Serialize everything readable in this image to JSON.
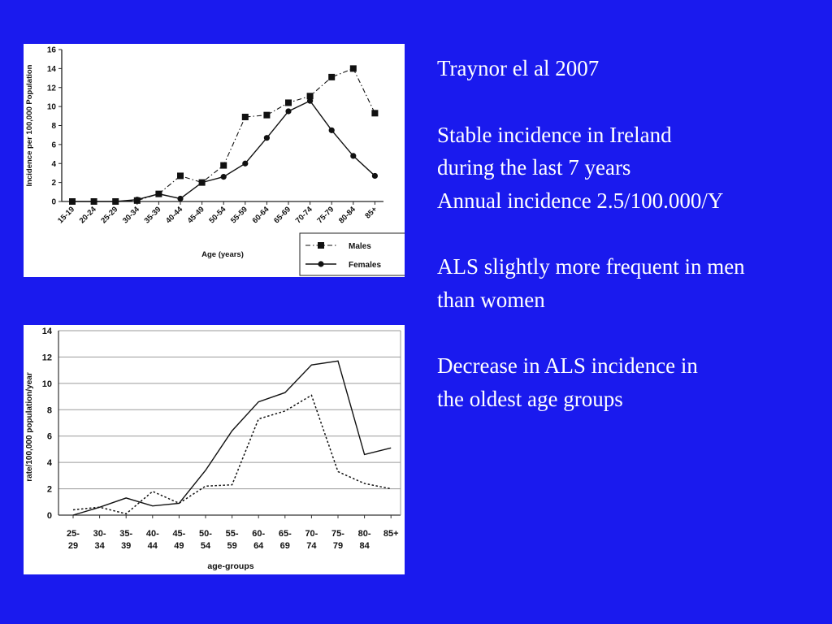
{
  "slide": {
    "background_color": "#1a1aee",
    "text_color": "#ffffff"
  },
  "text": {
    "citation": "Traynor el al 2007",
    "para1": [
      "Stable incidence in Ireland",
      "during the last 7 years",
      "Annual incidence 2.5/100.000/Y"
    ],
    "para2": [
      "ALS slightly more frequent in men",
      "than women"
    ],
    "para3": [
      "Decrease in ALS incidence in",
      "the oldest age groups"
    ]
  },
  "chart_data": [
    {
      "type": "line",
      "title": "",
      "xlabel": "Age (years)",
      "ylabel": "Incidence per 100,000 Population",
      "ylim": [
        0,
        16
      ],
      "yticks": [
        0,
        2,
        4,
        6,
        8,
        10,
        12,
        14,
        16
      ],
      "grid": false,
      "legend_position": "bottom-right",
      "categories": [
        "15-19",
        "20-24",
        "25-29",
        "30-34",
        "35-39",
        "40-44",
        "45-49",
        "50-54",
        "55-59",
        "60-64",
        "65-69",
        "70-74",
        "75-79",
        "80-84",
        "85+"
      ],
      "series": [
        {
          "name": "Males",
          "marker": "square",
          "line": "dash-dot",
          "values": [
            0,
            0,
            0,
            0.1,
            0.8,
            2.7,
            2.0,
            3.8,
            8.9,
            9.1,
            10.4,
            11.1,
            13.1,
            14.0,
            9.3
          ]
        },
        {
          "name": "Females",
          "marker": "circle",
          "line": "solid",
          "values": [
            0,
            0,
            0,
            0.2,
            0.8,
            0.3,
            2.0,
            2.6,
            4.0,
            6.7,
            9.5,
            10.6,
            7.5,
            4.8,
            2.7
          ]
        }
      ]
    },
    {
      "type": "line",
      "title": "",
      "xlabel": "age-groups",
      "ylabel": "rate/100,000 population/year",
      "ylim": [
        0,
        14
      ],
      "yticks": [
        0,
        2,
        4,
        6,
        8,
        10,
        12,
        14
      ],
      "grid": true,
      "categories": [
        "25-29",
        "30-34",
        "35-39",
        "40-44",
        "45-49",
        "50-54",
        "55-59",
        "60-64",
        "65-69",
        "70-74",
        "75-79",
        "80-84",
        "85+"
      ],
      "series": [
        {
          "line": "solid",
          "values": [
            0.0,
            0.6,
            1.3,
            0.7,
            0.9,
            3.4,
            6.4,
            8.6,
            9.3,
            11.4,
            11.7,
            4.6,
            5.1
          ]
        },
        {
          "line": "dotted",
          "values": [
            0.4,
            0.6,
            0.1,
            1.8,
            0.9,
            2.2,
            2.3,
            7.3,
            7.9,
            9.1,
            3.3,
            2.4,
            2.0
          ]
        }
      ]
    }
  ]
}
